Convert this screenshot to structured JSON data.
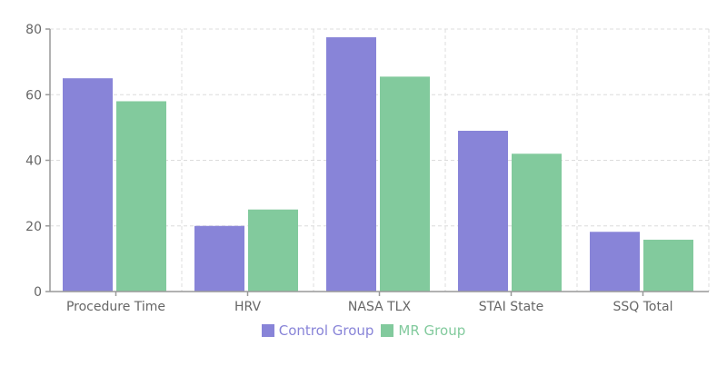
{
  "chart_data": {
    "type": "bar",
    "categories": [
      "Procedure Time",
      "HRV",
      "NASA TLX",
      "STAI State",
      "SSQ Total"
    ],
    "series": [
      {
        "name": "Control Group",
        "color": "#8884d8",
        "values": [
          65,
          20,
          77.5,
          49,
          18.2
        ]
      },
      {
        "name": "MR Group",
        "color": "#82ca9d",
        "values": [
          58,
          25,
          65.5,
          42,
          15.8
        ]
      }
    ],
    "ylim": [
      0,
      80
    ],
    "yticks": [
      0,
      20,
      40,
      60,
      80
    ],
    "grid": true,
    "legend_position": "bottom-center",
    "title": "",
    "xlabel": "",
    "ylabel": ""
  }
}
